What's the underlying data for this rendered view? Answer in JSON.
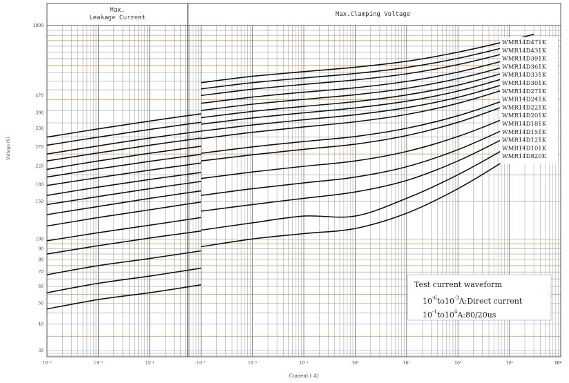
{
  "chart_data": {
    "type": "line",
    "title": "",
    "xlabel": "Current ( A)",
    "ylabel": "Voltage (V)",
    "x_scale": "log",
    "y_scale": "log",
    "xlim": [
      1e-06,
      10000
    ],
    "ylim": [
      30,
      1000
    ],
    "x_tick_labels": [
      "10⁻⁶",
      "10⁻⁵",
      "10⁻⁴",
      "10⁻³",
      "10⁻²",
      "10⁻¹",
      "10⁰",
      "10¹",
      "10²",
      "10³",
      "10⁴",
      "10⁴"
    ],
    "y_tick_labels": [
      {
        "v": 1000,
        "t": "1000"
      },
      {
        "v": 470,
        "t": "470"
      },
      {
        "v": 390,
        "t": "390"
      },
      {
        "v": 330,
        "t": "330"
      },
      {
        "v": 270,
        "t": "270"
      },
      {
        "v": 220,
        "t": "220"
      },
      {
        "v": 180,
        "t": "180"
      },
      {
        "v": 150,
        "t": "150"
      },
      {
        "v": 100,
        "t": "100"
      },
      {
        "v": 90,
        "t": "90"
      },
      {
        "v": 80,
        "t": "80"
      },
      {
        "v": 70,
        "t": "70"
      },
      {
        "v": 60,
        "t": "60"
      },
      {
        "v": 50,
        "t": "50"
      },
      {
        "v": 40,
        "t": "40"
      },
      {
        "v": 30,
        "t": "30"
      }
    ],
    "grid": true,
    "regions": [
      {
        "label_line1": "Max.",
        "label_line2": "Leakage Current",
        "x_range": [
          1e-06,
          0.001
        ]
      },
      {
        "label_line1": "Max.Clamping Voltage",
        "label_line2": "",
        "x_range": [
          0.001,
          10000
        ]
      }
    ],
    "series": [
      {
        "name": "WMR14D471K",
        "leakage": [
          [
            1e-06,
            300
          ],
          [
            1e-05,
            328
          ],
          [
            0.0001,
            357
          ],
          [
            0.001,
            386
          ]
        ],
        "clamping": [
          [
            0.001,
            540
          ],
          [
            0.01,
            578
          ],
          [
            0.1,
            608
          ],
          [
            1,
            638
          ],
          [
            10,
            680
          ],
          [
            100,
            750
          ],
          [
            1000,
            850
          ],
          [
            3000,
            910
          ]
        ]
      },
      {
        "name": "WMR14D431K",
        "leakage": [
          [
            1e-06,
            275
          ],
          [
            1e-05,
            300
          ],
          [
            0.0001,
            326
          ],
          [
            0.001,
            352
          ]
        ],
        "clamping": [
          [
            0.001,
            505
          ],
          [
            0.01,
            540
          ],
          [
            0.1,
            568
          ],
          [
            1,
            596
          ],
          [
            10,
            636
          ],
          [
            100,
            702
          ],
          [
            1000,
            800
          ],
          [
            3000,
            860
          ]
        ]
      },
      {
        "name": "WMR14D391K",
        "leakage": [
          [
            1e-06,
            250
          ],
          [
            1e-05,
            273
          ],
          [
            0.0001,
            297
          ],
          [
            0.001,
            320
          ]
        ],
        "clamping": [
          [
            0.001,
            470
          ],
          [
            0.01,
            503
          ],
          [
            0.1,
            530
          ],
          [
            1,
            556
          ],
          [
            10,
            594
          ],
          [
            100,
            656
          ],
          [
            1000,
            750
          ],
          [
            3000,
            810
          ]
        ]
      },
      {
        "name": "WMR14D361K",
        "leakage": [
          [
            1e-06,
            232
          ],
          [
            1e-05,
            253
          ],
          [
            0.0001,
            275
          ],
          [
            0.001,
            297
          ]
        ],
        "clamping": [
          [
            0.001,
            432
          ],
          [
            0.01,
            462
          ],
          [
            0.1,
            487
          ],
          [
            1,
            511
          ],
          [
            10,
            547
          ],
          [
            100,
            605
          ],
          [
            1000,
            695
          ],
          [
            3000,
            755
          ]
        ]
      },
      {
        "name": "WMR14D331K",
        "leakage": [
          [
            1e-06,
            212
          ],
          [
            1e-05,
            232
          ],
          [
            0.0001,
            252
          ],
          [
            0.001,
            272
          ]
        ],
        "clamping": [
          [
            0.001,
            400
          ],
          [
            0.01,
            428
          ],
          [
            0.1,
            451
          ],
          [
            1,
            474
          ],
          [
            10,
            508
          ],
          [
            100,
            564
          ],
          [
            1000,
            650
          ],
          [
            3000,
            708
          ]
        ]
      },
      {
        "name": "WMR14D301K",
        "leakage": [
          [
            1e-06,
            195
          ],
          [
            1e-05,
            213
          ],
          [
            0.0001,
            231
          ],
          [
            0.001,
            249
          ]
        ],
        "clamping": [
          [
            0.001,
            370
          ],
          [
            0.01,
            396
          ],
          [
            0.1,
            418
          ],
          [
            1,
            440
          ],
          [
            10,
            473
          ],
          [
            100,
            526
          ],
          [
            1000,
            610
          ],
          [
            3000,
            665
          ]
        ]
      },
      {
        "name": "WMR14D271K",
        "leakage": [
          [
            1e-06,
            178
          ],
          [
            1e-05,
            194
          ],
          [
            0.0001,
            210
          ],
          [
            0.001,
            227
          ]
        ],
        "clamping": [
          [
            0.001,
            345
          ],
          [
            0.01,
            369
          ],
          [
            0.1,
            390
          ],
          [
            1,
            411
          ],
          [
            10,
            442
          ],
          [
            100,
            493
          ],
          [
            1000,
            575
          ],
          [
            3000,
            628
          ]
        ]
      },
      {
        "name": "WMR14D241K",
        "leakage": [
          [
            1e-06,
            160
          ],
          [
            1e-05,
            175
          ],
          [
            0.0001,
            190
          ],
          [
            0.001,
            205
          ]
        ],
        "clamping": [
          [
            0.001,
            320
          ],
          [
            0.01,
            342
          ],
          [
            0.1,
            362
          ],
          [
            1,
            382
          ],
          [
            10,
            412
          ],
          [
            100,
            461
          ],
          [
            1000,
            540
          ],
          [
            3000,
            592
          ]
        ]
      },
      {
        "name": "WMR14D221K",
        "leakage": [
          [
            1e-06,
            145
          ],
          [
            1e-05,
            158
          ],
          [
            0.0001,
            172
          ],
          [
            0.001,
            186
          ]
        ],
        "clamping": [
          [
            0.001,
            295
          ],
          [
            0.01,
            316
          ],
          [
            0.1,
            335
          ],
          [
            1,
            354
          ],
          [
            10,
            383
          ],
          [
            100,
            432
          ],
          [
            1000,
            510
          ],
          [
            3000,
            562
          ]
        ]
      },
      {
        "name": "WMR14D201K",
        "leakage": [
          [
            1e-06,
            130
          ],
          [
            1e-05,
            142
          ],
          [
            0.0001,
            155
          ],
          [
            0.001,
            168
          ]
        ],
        "clamping": [
          [
            0.001,
            252
          ],
          [
            0.01,
            270
          ],
          [
            0.1,
            286
          ],
          [
            1,
            302
          ],
          [
            10,
            330
          ],
          [
            100,
            378
          ],
          [
            1000,
            455
          ],
          [
            3000,
            505
          ]
        ]
      },
      {
        "name": "WMR14D181K",
        "leakage": [
          [
            1e-06,
            115
          ],
          [
            1e-05,
            126
          ],
          [
            0.0001,
            137
          ],
          [
            0.001,
            149
          ]
        ],
        "clamping": [
          [
            0.001,
            232
          ],
          [
            0.01,
            248
          ],
          [
            0.1,
            263
          ],
          [
            1,
            278
          ],
          [
            10,
            305
          ],
          [
            100,
            352
          ],
          [
            1000,
            428
          ],
          [
            3000,
            478
          ]
        ]
      },
      {
        "name": "WMR14D151K",
        "leakage": [
          [
            1e-06,
            98
          ],
          [
            1e-05,
            107
          ],
          [
            0.0001,
            116
          ],
          [
            0.001,
            126
          ]
        ],
        "clamping": [
          [
            0.001,
            192
          ],
          [
            0.01,
            206
          ],
          [
            0.1,
            219
          ],
          [
            1,
            232
          ],
          [
            10,
            257
          ],
          [
            100,
            302
          ],
          [
            1000,
            375
          ],
          [
            3000,
            425
          ]
        ]
      },
      {
        "name": "WMR14D121K",
        "leakage": [
          [
            1e-06,
            85
          ],
          [
            1e-05,
            93
          ],
          [
            0.0001,
            101
          ],
          [
            0.001,
            109
          ]
        ],
        "clamping": [
          [
            0.001,
            160
          ],
          [
            0.01,
            172
          ],
          [
            0.1,
            183
          ],
          [
            1,
            195
          ],
          [
            10,
            218
          ],
          [
            100,
            262
          ],
          [
            1000,
            335
          ],
          [
            3000,
            385
          ]
        ]
      },
      {
        "name": "WMR14D101K",
        "leakage": [
          [
            1e-06,
            68
          ],
          [
            1e-05,
            75
          ],
          [
            0.0001,
            81
          ],
          [
            0.001,
            88
          ]
        ],
        "clamping": [
          [
            0.001,
            135
          ],
          [
            0.01,
            145
          ],
          [
            0.1,
            155
          ],
          [
            1,
            166
          ],
          [
            10,
            188
          ],
          [
            100,
            232
          ],
          [
            1000,
            305
          ],
          [
            3000,
            355
          ]
        ]
      },
      {
        "name": "WMR14D820K",
        "leakage": [
          [
            1e-06,
            56
          ],
          [
            1e-05,
            62
          ],
          [
            0.0001,
            67
          ],
          [
            0.001,
            73
          ]
        ],
        "clamping": [
          [
            0.001,
            110
          ],
          [
            0.01,
            119
          ],
          [
            0.1,
            128
          ],
          [
            1,
            128
          ],
          [
            10,
            155
          ],
          [
            100,
            200
          ],
          [
            1000,
            272
          ],
          [
            3000,
            322
          ]
        ]
      },
      {
        "name": "",
        "leakage": [
          [
            1e-06,
            47
          ],
          [
            1e-05,
            52
          ],
          [
            0.0001,
            56
          ],
          [
            0.001,
            61
          ]
        ],
        "clamping": [
          [
            0.001,
            92
          ],
          [
            0.01,
            100
          ],
          [
            0.1,
            106
          ],
          [
            1,
            112
          ],
          [
            10,
            132
          ],
          [
            100,
            172
          ],
          [
            1000,
            240
          ],
          [
            3000,
            288
          ]
        ]
      }
    ],
    "annotations": [
      {
        "parts": [
          "Test current waveform"
        ]
      },
      {
        "parts": [
          "10",
          "-6",
          "to10",
          "-3",
          "A:Direct current"
        ]
      },
      {
        "parts": [
          "10",
          "-1",
          "to10",
          "4",
          "A:80/20us"
        ]
      }
    ],
    "colors": {
      "curve": "#111111",
      "grid_gray": "#9a9a9a",
      "grid_orange": "#e0a06a"
    }
  }
}
